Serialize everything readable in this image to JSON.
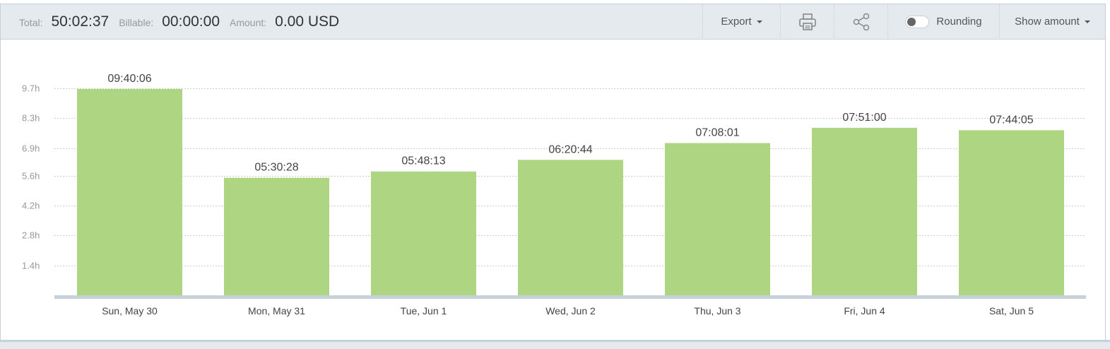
{
  "summary": {
    "total_label": "Total:",
    "total_value": "50:02:37",
    "billable_label": "Billable:",
    "billable_value": "00:00:00",
    "amount_label": "Amount:",
    "amount_value": "0.00 USD"
  },
  "toolbar": {
    "export_label": "Export",
    "print_icon": "printer-icon",
    "share_icon": "share-icon",
    "rounding_label": "Rounding",
    "rounding_enabled": false,
    "show_amount_label": "Show amount"
  },
  "colors": {
    "bar": "#aed581",
    "bar_base": "#c6d2d9",
    "grid": "#cccccc",
    "toolbar_bg": "#e4eaee"
  },
  "chart_data": {
    "type": "bar",
    "categories": [
      "Sun, May 30",
      "Mon, May 31",
      "Tue, Jun 1",
      "Wed, Jun 2",
      "Thu, Jun 3",
      "Fri, Jun 4",
      "Sat, Jun 5"
    ],
    "values": [
      9.668,
      5.508,
      5.804,
      6.346,
      7.134,
      7.85,
      7.735
    ],
    "data_labels": [
      "09:40:06",
      "05:30:28",
      "05:48:13",
      "06:20:44",
      "07:08:01",
      "07:51:00",
      "07:44:05"
    ],
    "y_ticks": [
      1.4,
      2.8,
      4.2,
      5.6,
      6.9,
      8.3,
      9.7
    ],
    "y_tick_labels": [
      "1.4h",
      "2.8h",
      "4.2h",
      "5.6h",
      "6.9h",
      "8.3h",
      "9.7h"
    ],
    "ylim": [
      0,
      9.7
    ],
    "grid": true,
    "legend": "none"
  }
}
